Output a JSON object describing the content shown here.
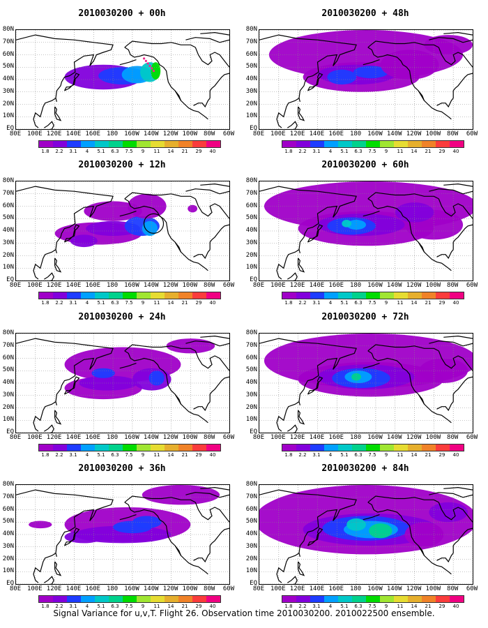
{
  "caption": "Signal Variance for u,v,T. Flight 26. Observation time 2010030200. 2010022500 ensemble.",
  "lat_labels": [
    "80N",
    "70N",
    "60N",
    "50N",
    "40N",
    "30N",
    "20N",
    "10N",
    "EQ"
  ],
  "lon_labels": [
    "80E",
    "100E",
    "120E",
    "140E",
    "160E",
    "180",
    "160W",
    "140W",
    "120W",
    "100W",
    "80W",
    "60W"
  ],
  "colorbar": {
    "levels": [
      "1.8",
      "2.2",
      "3.1",
      "4",
      "5.1",
      "6.3",
      "7.5",
      "9",
      "11",
      "14",
      "21",
      "29",
      "40"
    ],
    "colors": [
      "#a000c8",
      "#8200dc",
      "#1e3cff",
      "#00a0ff",
      "#00c8c8",
      "#00d28c",
      "#00dc00",
      "#a0e632",
      "#e6dc32",
      "#e6af2d",
      "#f08228",
      "#fa3c3c",
      "#f00082"
    ]
  },
  "panels": [
    {
      "title": "2010030200 + 00h",
      "lead_hours": 0
    },
    {
      "title": "2010030200 + 12h",
      "lead_hours": 12
    },
    {
      "title": "2010030200 + 24h",
      "lead_hours": 24
    },
    {
      "title": "2010030200 + 36h",
      "lead_hours": 36
    },
    {
      "title": "2010030200 + 48h",
      "lead_hours": 48
    },
    {
      "title": "2010030200 + 60h",
      "lead_hours": 60
    },
    {
      "title": "2010030200 + 72h",
      "lead_hours": 72
    },
    {
      "title": "2010030200 + 84h",
      "lead_hours": 84
    }
  ]
}
